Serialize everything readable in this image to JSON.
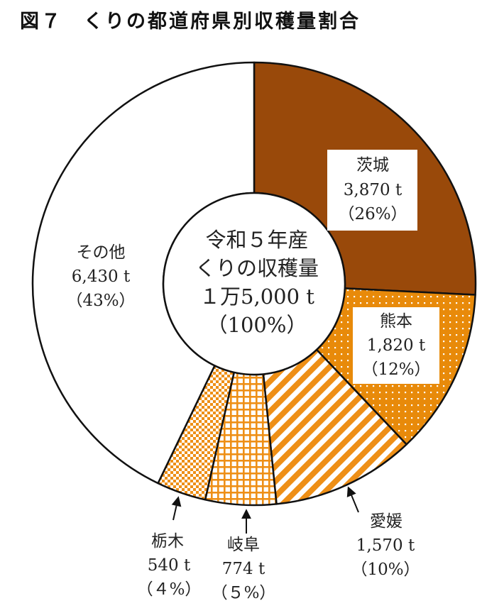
{
  "title": "図７　くりの都道府県別収穫量割合",
  "chart_data": {
    "type": "pie",
    "style": "donut",
    "center_label": [
      "令和５年産",
      "くりの収穫量",
      "１万5,000 t",
      "（100%）"
    ],
    "slices": [
      {
        "name": "茨城",
        "value": 3870,
        "value_label": "3,870 t",
        "percent_label": "（26%）",
        "percent": 26,
        "color": "#99490a",
        "pattern": "solid"
      },
      {
        "name": "熊本",
        "value": 1820,
        "value_label": "1,820 t",
        "percent_label": "（12%）",
        "percent": 12,
        "color": "#e88a0a",
        "pattern": "dots"
      },
      {
        "name": "愛媛",
        "value": 1570,
        "value_label": "1,570 t",
        "percent_label": "（10%）",
        "percent": 10,
        "color": "#ee8f16",
        "pattern": "diagonal-stripes"
      },
      {
        "name": "岐阜",
        "value": 774,
        "value_label": "774 t",
        "percent_label": "（５%）",
        "percent": 5,
        "color": "#ee8f16",
        "pattern": "grid"
      },
      {
        "name": "栃木",
        "value": 540,
        "value_label": "540 t",
        "percent_label": "（４%）",
        "percent": 4,
        "color": "#ee8f16",
        "pattern": "checker"
      },
      {
        "name": "その他",
        "value": 6430,
        "value_label": "6,430 t",
        "percent_label": "（43%）",
        "percent": 43,
        "color": "#ffffff",
        "pattern": "none"
      }
    ]
  }
}
